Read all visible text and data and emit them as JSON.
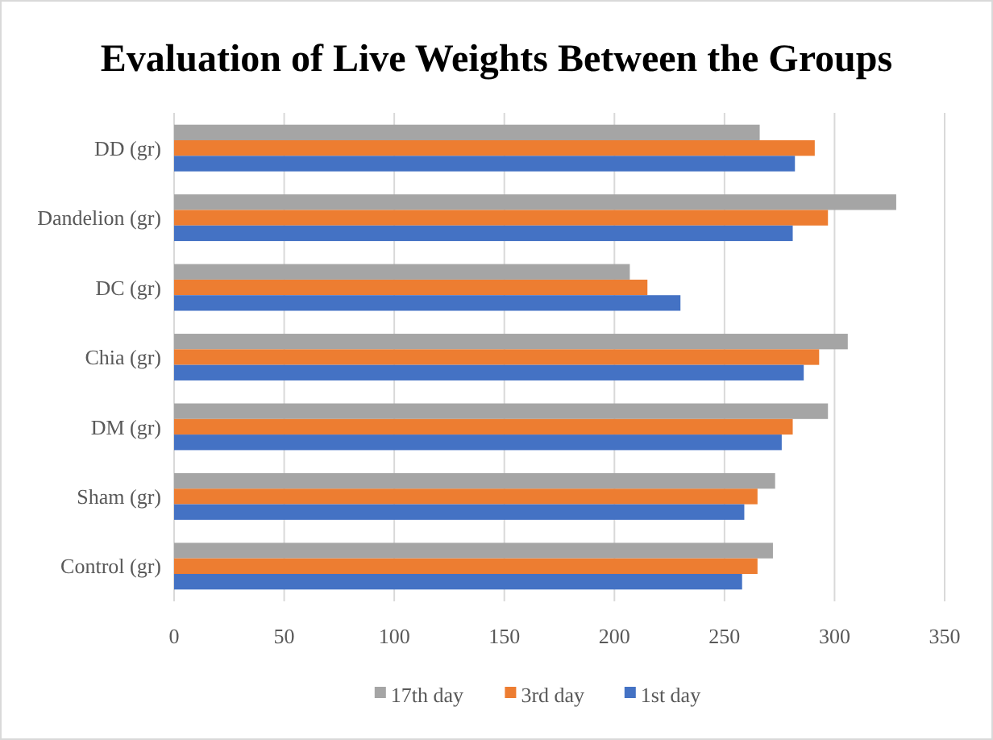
{
  "chart_data": {
    "type": "bar",
    "orientation": "horizontal",
    "title": "Evaluation of Live Weights Between the Groups",
    "categories": [
      "DD (gr)",
      "Dandelion (gr)",
      "DC (gr)",
      "Chia (gr)",
      "DM (gr)",
      "Sham (gr)",
      "Control (gr)"
    ],
    "series": [
      {
        "name": "17th day",
        "color": "#a5a5a5",
        "values": [
          266,
          328,
          207,
          306,
          297,
          273,
          272
        ]
      },
      {
        "name": "3rd day",
        "color": "#ed7d31",
        "values": [
          291,
          297,
          215,
          293,
          281,
          265,
          265
        ]
      },
      {
        "name": "1st day",
        "color": "#4472c4",
        "values": [
          282,
          281,
          230,
          286,
          276,
          259,
          258
        ]
      }
    ],
    "xlim": [
      0,
      350
    ],
    "xticks": [
      0,
      50,
      100,
      150,
      200,
      250,
      300,
      350
    ],
    "grid": "x",
    "legend": "bottom"
  }
}
